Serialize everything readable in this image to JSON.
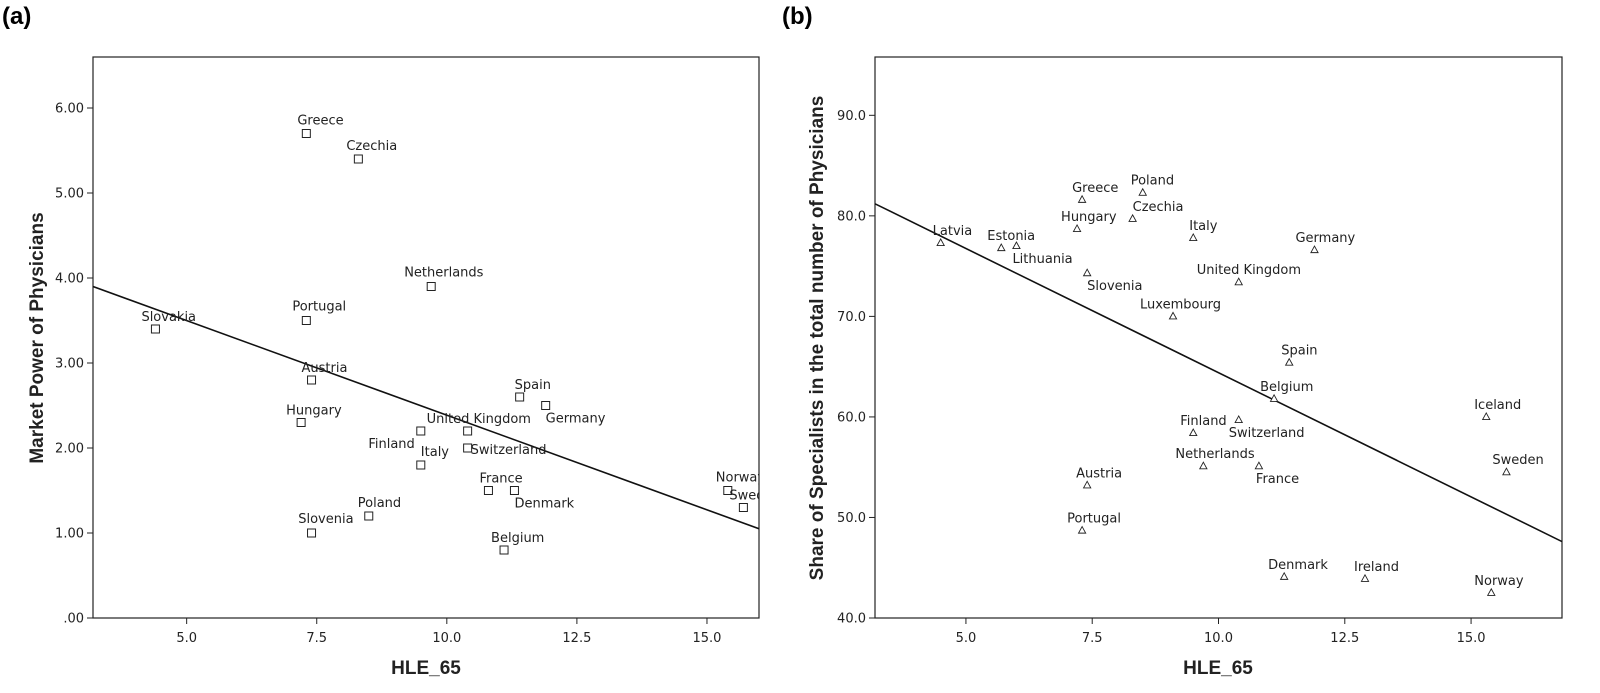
{
  "chart_data": [
    {
      "type": "scatter",
      "panel": "(a)",
      "xlabel": "HLE_65",
      "ylabel": "Market Power of Physicians",
      "xlim": [
        3.2,
        16.0
      ],
      "ylim": [
        0,
        6.6
      ],
      "xticks": [
        "5.0",
        "7.5",
        "10.0",
        "12.5",
        "15.0"
      ],
      "xtick_values": [
        5.0,
        7.5,
        10.0,
        12.5,
        15.0
      ],
      "yticks": [
        ".00",
        "1.00",
        "2.00",
        "3.00",
        "4.00",
        "5.00",
        "6.00"
      ],
      "ytick_values": [
        0,
        1,
        2,
        3,
        4,
        5,
        6
      ],
      "marker": "square",
      "fit_line": {
        "x": [
          3.2,
          16.0
        ],
        "y": [
          3.9,
          1.05
        ]
      },
      "points": [
        {
          "label": "Greece",
          "x": 7.3,
          "y": 5.7,
          "anchor": "start",
          "dx": -9,
          "dy": -9
        },
        {
          "label": "Czechia",
          "x": 8.3,
          "y": 5.4,
          "anchor": "start",
          "dx": -12,
          "dy": -9
        },
        {
          "label": "Netherlands",
          "x": 9.7,
          "y": 3.9,
          "anchor": "start",
          "dx": -27,
          "dy": -10
        },
        {
          "label": "Portugal",
          "x": 7.3,
          "y": 3.5,
          "anchor": "start",
          "dx": -14,
          "dy": -10
        },
        {
          "label": "Slovakia",
          "x": 4.4,
          "y": 3.4,
          "anchor": "start",
          "dx": -14,
          "dy": -8
        },
        {
          "label": "Austria",
          "x": 7.4,
          "y": 2.8,
          "anchor": "start",
          "dx": -10,
          "dy": -8
        },
        {
          "label": "Spain",
          "x": 11.4,
          "y": 2.6,
          "anchor": "start",
          "dx": -5,
          "dy": -8
        },
        {
          "label": "Germany",
          "x": 11.9,
          "y": 2.5,
          "anchor": "start",
          "dx": 0,
          "dy": 17
        },
        {
          "label": "Hungary",
          "x": 7.2,
          "y": 2.3,
          "anchor": "start",
          "dx": -15,
          "dy": -8
        },
        {
          "label": "United Kingdom",
          "x": 10.4,
          "y": 2.2,
          "anchor": "start",
          "dx": -41,
          "dy": -8
        },
        {
          "label": "Finland",
          "x": 9.5,
          "y": 2.2,
          "anchor": "end",
          "dx": -6,
          "dy": 17
        },
        {
          "label": "Switzerland",
          "x": 10.4,
          "y": 2.0,
          "anchor": "start",
          "dx": 3,
          "dy": 6
        },
        {
          "label": "Italy",
          "x": 9.5,
          "y": 1.8,
          "anchor": "start",
          "dx": 0,
          "dy": -9
        },
        {
          "label": "France",
          "x": 10.8,
          "y": 1.5,
          "anchor": "start",
          "dx": -9,
          "dy": -8
        },
        {
          "label": "Denmark",
          "x": 11.3,
          "y": 1.5,
          "anchor": "start",
          "dx": 0,
          "dy": 17
        },
        {
          "label": "Norway",
          "x": 15.4,
          "y": 1.5,
          "anchor": "start",
          "dx": -12,
          "dy": -9
        },
        {
          "label": "Sweden",
          "x": 15.7,
          "y": 1.3,
          "anchor": "start",
          "dx": -14,
          "dy": -8
        },
        {
          "label": "Poland",
          "x": 8.5,
          "y": 1.2,
          "anchor": "start",
          "dx": -11,
          "dy": -9
        },
        {
          "label": "Slovenia",
          "x": 7.4,
          "y": 1.0,
          "anchor": "end",
          "dx": 42,
          "dy": -10
        },
        {
          "label": "Belgium",
          "x": 11.1,
          "y": 0.8,
          "anchor": "start",
          "dx": -13,
          "dy": -8
        }
      ]
    },
    {
      "type": "scatter",
      "panel": "(b)",
      "xlabel": "HLE_65",
      "ylabel": "Share of Specialists in the total number of Physicians",
      "xlim": [
        3.2,
        16.8
      ],
      "ylim": [
        40,
        95.8
      ],
      "xticks": [
        "5.0",
        "7.5",
        "10.0",
        "12.5",
        "15.0"
      ],
      "xtick_values": [
        5.0,
        7.5,
        10.0,
        12.5,
        15.0
      ],
      "yticks": [
        "40.0",
        "50.0",
        "60.0",
        "70.0",
        "80.0",
        "90.0"
      ],
      "ytick_values": [
        40,
        50,
        60,
        70,
        80,
        90
      ],
      "marker": "triangle",
      "fit_line": {
        "x": [
          3.2,
          16.8
        ],
        "y": [
          81.2,
          47.6
        ]
      },
      "points": [
        {
          "label": "Poland",
          "x": 8.5,
          "y": 82.3,
          "anchor": "start",
          "dx": -12,
          "dy": -8
        },
        {
          "label": "Greece",
          "x": 7.3,
          "y": 81.6,
          "anchor": "start",
          "dx": -10,
          "dy": -8
        },
        {
          "label": "Czechia",
          "x": 8.3,
          "y": 79.7,
          "anchor": "start",
          "dx": 0,
          "dy": -8
        },
        {
          "label": "Hungary",
          "x": 7.2,
          "y": 78.7,
          "anchor": "start",
          "dx": -16,
          "dy": -8
        },
        {
          "label": "Italy",
          "x": 9.5,
          "y": 77.8,
          "anchor": "start",
          "dx": -4,
          "dy": -8
        },
        {
          "label": "Latvia",
          "x": 4.5,
          "y": 77.3,
          "anchor": "start",
          "dx": -8,
          "dy": -8
        },
        {
          "label": "Estonia",
          "x": 5.7,
          "y": 76.8,
          "anchor": "start",
          "dx": -14,
          "dy": -8
        },
        {
          "label": "Lithuania",
          "x": 6.0,
          "y": 77.0,
          "anchor": "start",
          "dx": -4,
          "dy": 17
        },
        {
          "label": "Germany",
          "x": 11.9,
          "y": 76.6,
          "anchor": "start",
          "dx": -19,
          "dy": -8
        },
        {
          "label": "Slovenia",
          "x": 7.4,
          "y": 74.3,
          "anchor": "start",
          "dx": 0,
          "dy": 17
        },
        {
          "label": "United Kingdom",
          "x": 10.4,
          "y": 73.4,
          "anchor": "start",
          "dx": -42,
          "dy": -8
        },
        {
          "label": "Luxembourg",
          "x": 9.1,
          "y": 70.0,
          "anchor": "start",
          "dx": -33,
          "dy": -8
        },
        {
          "label": "Spain",
          "x": 11.4,
          "y": 65.4,
          "anchor": "start",
          "dx": -8,
          "dy": -8
        },
        {
          "label": "Belgium",
          "x": 11.1,
          "y": 61.8,
          "anchor": "start",
          "dx": -14,
          "dy": -8
        },
        {
          "label": "Iceland",
          "x": 15.3,
          "y": 60.0,
          "anchor": "start",
          "dx": -12,
          "dy": -8
        },
        {
          "label": "Finland",
          "x": 9.5,
          "y": 58.4,
          "anchor": "start",
          "dx": -13,
          "dy": -8
        },
        {
          "label": "Switzerland",
          "x": 10.4,
          "y": 59.7,
          "anchor": "start",
          "dx": -10,
          "dy": 17
        },
        {
          "label": "Netherlands",
          "x": 9.7,
          "y": 55.1,
          "anchor": "start",
          "dx": -28,
          "dy": -8
        },
        {
          "label": "France",
          "x": 10.8,
          "y": 55.1,
          "anchor": "start",
          "dx": -3,
          "dy": 17
        },
        {
          "label": "Sweden",
          "x": 15.7,
          "y": 54.5,
          "anchor": "start",
          "dx": -14,
          "dy": -8
        },
        {
          "label": "Austria",
          "x": 7.4,
          "y": 53.2,
          "anchor": "start",
          "dx": -11,
          "dy": -8
        },
        {
          "label": "Portugal",
          "x": 7.3,
          "y": 48.7,
          "anchor": "start",
          "dx": -15,
          "dy": -8
        },
        {
          "label": "Denmark",
          "x": 11.3,
          "y": 44.1,
          "anchor": "start",
          "dx": -16,
          "dy": -8
        },
        {
          "label": "Ireland",
          "x": 12.9,
          "y": 43.9,
          "anchor": "start",
          "dx": -11,
          "dy": -8
        },
        {
          "label": "Norway",
          "x": 15.4,
          "y": 42.5,
          "anchor": "start",
          "dx": -17,
          "dy": -8
        }
      ]
    }
  ]
}
